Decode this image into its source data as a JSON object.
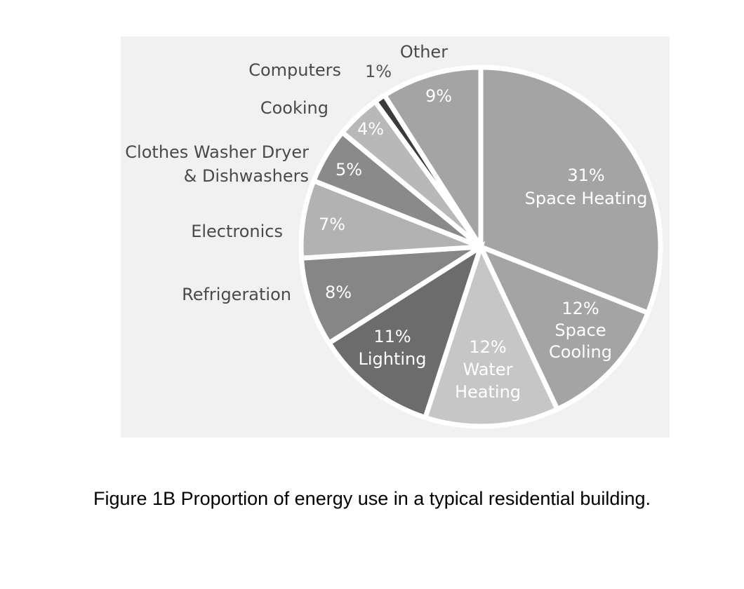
{
  "caption": "Figure 1B Proportion of energy use in a typical residential building.",
  "chart_data": {
    "type": "pie",
    "slices": [
      {
        "label_lines": [
          "Space Heating"
        ],
        "pct_text": "31%",
        "value": 31,
        "color": "#a4a4a4",
        "text_color": "#ffffff",
        "label_inside": true
      },
      {
        "label_lines": [
          "Space",
          "Cooling"
        ],
        "pct_text": "12%",
        "value": 12,
        "color": "#a4a4a4",
        "text_color": "#ffffff",
        "label_inside": true
      },
      {
        "label_lines": [
          "Water",
          "Heating"
        ],
        "pct_text": "12%",
        "value": 12,
        "color": "#c6c6c6",
        "text_color": "#ffffff",
        "label_inside": true
      },
      {
        "label_lines": [
          "Lighting"
        ],
        "pct_text": "11%",
        "value": 11,
        "color": "#6c6c6c",
        "text_color": "#ffffff",
        "label_inside": true
      },
      {
        "label_lines": [
          "Refrigeration"
        ],
        "pct_text": "8%",
        "value": 8,
        "color": "#868686",
        "text_color": "#ffffff",
        "label_inside": false
      },
      {
        "label_lines": [
          "Electronics"
        ],
        "pct_text": "7%",
        "value": 7,
        "color": "#b2b2b2",
        "text_color": "#ffffff",
        "label_inside": false
      },
      {
        "label_lines": [
          "Clothes Washer Dryer",
          "& Dishwashers"
        ],
        "pct_text": "5%",
        "value": 5,
        "color": "#8a8a8a",
        "text_color": "#ffffff",
        "label_inside": false
      },
      {
        "label_lines": [
          "Cooking"
        ],
        "pct_text": "4%",
        "value": 4,
        "color": "#b8b8b8",
        "text_color": "#ffffff",
        "label_inside": false
      },
      {
        "label_lines": [
          "Computers"
        ],
        "pct_text": "1%",
        "value": 1,
        "color": "#3a3a3a",
        "text_color": "#555555",
        "label_inside": false
      },
      {
        "label_lines": [
          "Other"
        ],
        "pct_text": "9%",
        "value": 9,
        "color": "#a4a4a4",
        "text_color": "#ffffff",
        "label_inside": false
      }
    ],
    "start": "top, clockwise",
    "legend": "none",
    "label_color": "#4a4a4a",
    "panel_color": "#f1f1f1"
  }
}
